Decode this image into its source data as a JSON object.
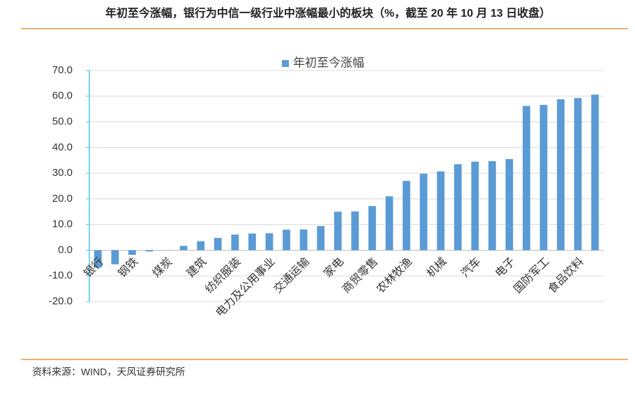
{
  "chart_data": {
    "type": "bar",
    "title": "年初至今涨幅，银行为中信一级行业中涨幅最小的板块（%，截至 20 年 10 月 13 日收盘）",
    "source": "资料来源：WIND，天风证券研究所",
    "categories": [
      "银行",
      null,
      "钢铁",
      null,
      "煤炭",
      null,
      "建筑",
      null,
      "纺织服装",
      null,
      "电力及公用事业",
      null,
      "交通运输",
      null,
      "家电",
      null,
      "商贸零售",
      null,
      "农林牧渔",
      null,
      "机械",
      null,
      "汽车",
      null,
      "电子",
      null,
      "国防军工",
      null,
      "食品饮料",
      null
    ],
    "series": [
      {
        "name": "年初至今涨幅",
        "color": "#5b9bd5",
        "values": [
          -6.8,
          -5.5,
          -1.8,
          -0.5,
          0.1,
          1.7,
          3.5,
          4.8,
          6.1,
          6.5,
          6.6,
          8.0,
          8.1,
          9.4,
          15.0,
          15.1,
          17.2,
          21.0,
          27.0,
          29.8,
          30.7,
          33.5,
          34.5,
          34.7,
          35.5,
          56.2,
          56.6,
          58.8,
          59.3,
          60.6
        ]
      }
    ],
    "ylim": [
      -20,
      70
    ],
    "yticks": [
      {
        "value": -20,
        "label": "-20.0"
      },
      {
        "value": -10,
        "label": "-10.0"
      },
      {
        "value": 0,
        "label": "0.0"
      },
      {
        "value": 10,
        "label": "10.0"
      },
      {
        "value": 20,
        "label": "20.0"
      },
      {
        "value": 30,
        "label": "30.0"
      },
      {
        "value": 40,
        "label": "40.0"
      },
      {
        "value": 50,
        "label": "50.0"
      },
      {
        "value": 60,
        "label": "60.0"
      },
      {
        "value": 70,
        "label": "70.0"
      }
    ],
    "grid": true,
    "legend": "top"
  }
}
